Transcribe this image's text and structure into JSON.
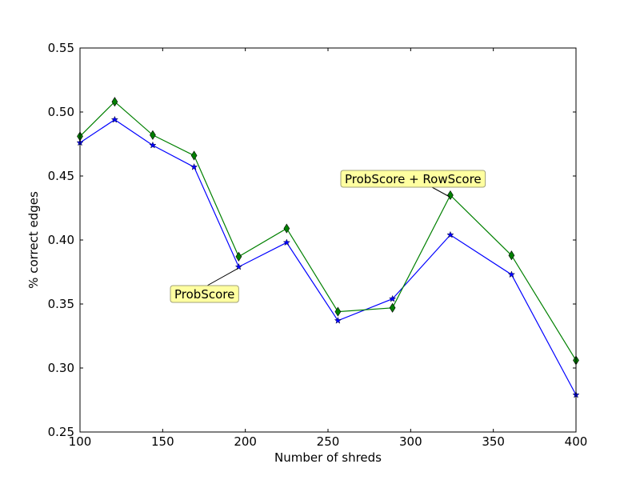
{
  "chart_data": {
    "type": "line",
    "xlabel": "Number of shreds",
    "ylabel": "% correct edges",
    "xlim": [
      100,
      400
    ],
    "ylim": [
      0.25,
      0.55
    ],
    "xticks": [
      "100",
      "150",
      "200",
      "250",
      "300",
      "350",
      "400"
    ],
    "yticks": [
      "0.25",
      "0.30",
      "0.35",
      "0.40",
      "0.45",
      "0.50",
      "0.55"
    ],
    "grid": false,
    "x": [
      100,
      121,
      144,
      169,
      196,
      225,
      256,
      289,
      324,
      361,
      400
    ],
    "series": [
      {
        "values": [
          0.476,
          0.494,
          0.474,
          0.457,
          0.379,
          0.398,
          0.337,
          0.354,
          0.404,
          0.373,
          0.279
        ],
        "color": "#0000ff",
        "marker": "star"
      },
      {
        "values": [
          0.481,
          0.508,
          0.482,
          0.466,
          0.387,
          0.409,
          0.344,
          0.347,
          0.435,
          0.388,
          0.306
        ],
        "color": "#008000",
        "marker": "diamond"
      }
    ],
    "annotations": [
      {
        "text": "ProbScore",
        "x": 196,
        "y": 0.379,
        "series": 0
      },
      {
        "text": "ProbScore + RowScore",
        "x": 324,
        "y": 0.435,
        "series": 1
      }
    ]
  }
}
